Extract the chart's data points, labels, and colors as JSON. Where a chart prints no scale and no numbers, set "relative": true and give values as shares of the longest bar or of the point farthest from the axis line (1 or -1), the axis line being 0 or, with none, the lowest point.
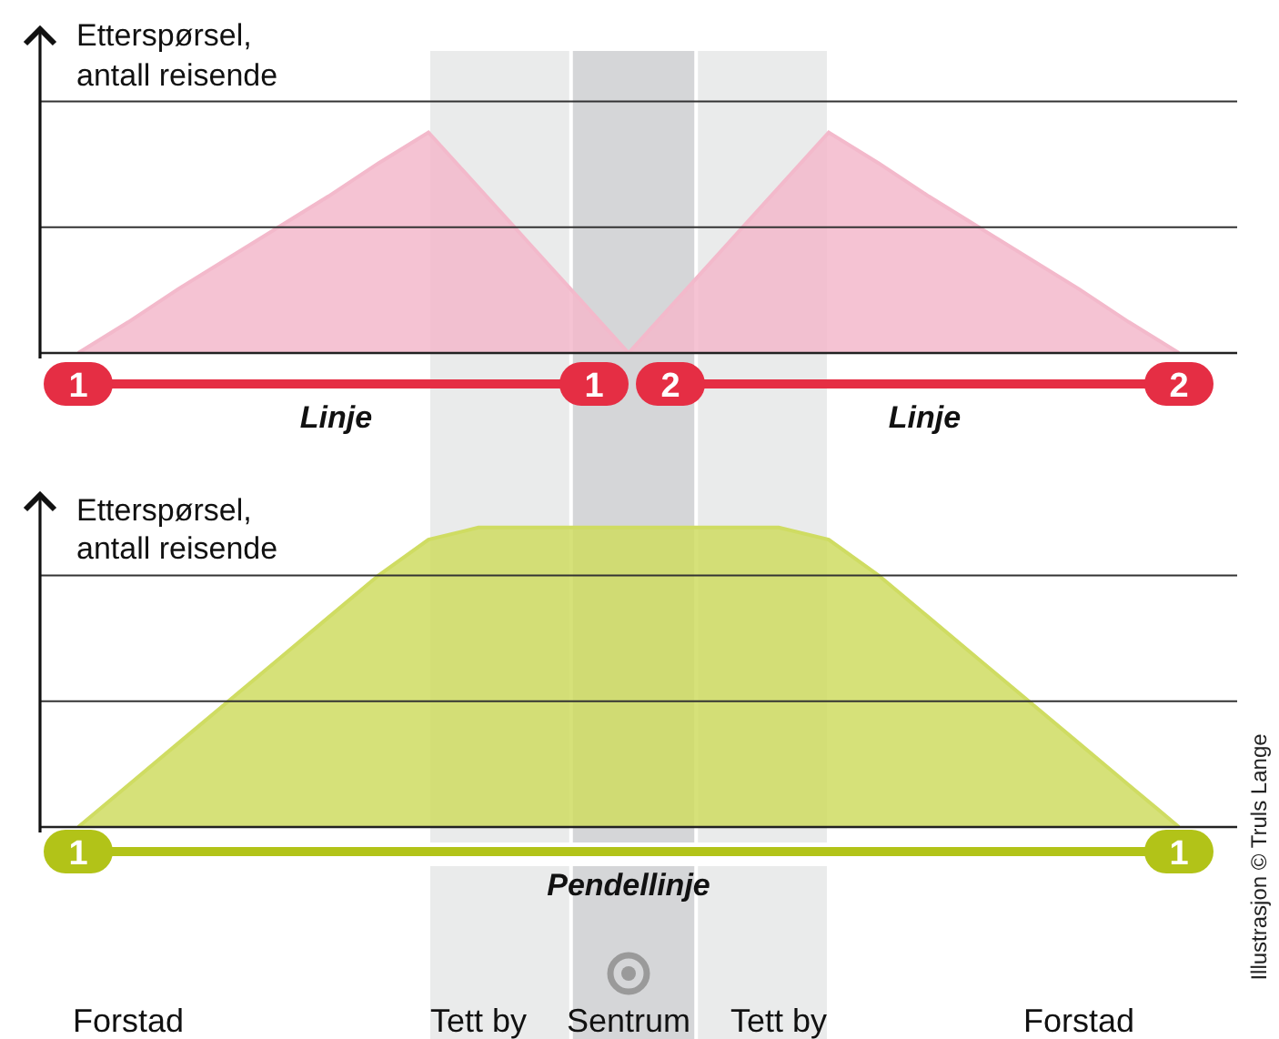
{
  "chart_data": [
    {
      "type": "area",
      "relative": true,
      "ylabel": "Etterspørsel,\nantall reisende",
      "tick_labels": false,
      "ref_lines": [
        {
          "axis": "y",
          "value": 0.57,
          "color": "#333333"
        },
        {
          "axis": "y",
          "value": 1.14,
          "color": "#333333"
        }
      ],
      "categories": [
        null,
        null,
        null,
        null,
        null,
        null,
        null,
        null,
        null,
        null,
        null,
        null,
        null,
        null,
        null,
        null,
        null,
        null,
        null,
        null,
        null,
        null,
        null
      ],
      "series": [
        {
          "name": "Linje",
          "color": "#f3b9cb",
          "values": [
            0,
            0.14,
            0.29,
            0.43,
            0.57,
            0.71,
            0.86,
            1,
            0.75,
            0.5,
            0.25,
            0,
            null,
            null,
            null,
            null,
            null,
            null,
            null,
            null,
            null,
            null,
            null
          ]
        },
        {
          "name": "Linje",
          "color": "#f3b9cb",
          "values": [
            null,
            null,
            null,
            null,
            null,
            null,
            null,
            null,
            null,
            null,
            null,
            0,
            0.25,
            0.5,
            0.75,
            1,
            0.86,
            0.71,
            0.57,
            0.43,
            0.29,
            0.14,
            0
          ]
        }
      ],
      "annotations": [
        {
          "text": "1"
        },
        {
          "text": "1"
        },
        {
          "text": "2"
        },
        {
          "text": "2"
        }
      ]
    },
    {
      "type": "area",
      "relative": true,
      "ylabel": "Etterspørsel,\nantall reisende",
      "tick_labels": "x",
      "ref_lines": [
        {
          "axis": "y",
          "value": 0.42,
          "color": "#333333"
        },
        {
          "axis": "y",
          "value": 0.84,
          "color": "#333333"
        }
      ],
      "categories": [
        null,
        "Forstad",
        null,
        null,
        null,
        null,
        null,
        null,
        "Tett by",
        null,
        null,
        "Sentrum",
        null,
        null,
        "Tett by",
        null,
        null,
        null,
        null,
        null,
        "Forstad",
        null,
        null
      ],
      "series": [
        {
          "name": "Pendellinje",
          "color": "#cfdc62",
          "values": [
            0,
            0.14,
            0.28,
            0.42,
            0.56,
            0.7,
            0.84,
            0.96,
            1,
            1,
            1,
            1,
            1,
            1,
            1,
            0.96,
            0.84,
            0.7,
            0.56,
            0.42,
            0.28,
            0.14,
            0
          ]
        }
      ],
      "annotations": [
        {
          "text": "1"
        },
        {
          "text": "1"
        },
        "Illustrasjon © Truls Lange"
      ]
    }
  ]
}
